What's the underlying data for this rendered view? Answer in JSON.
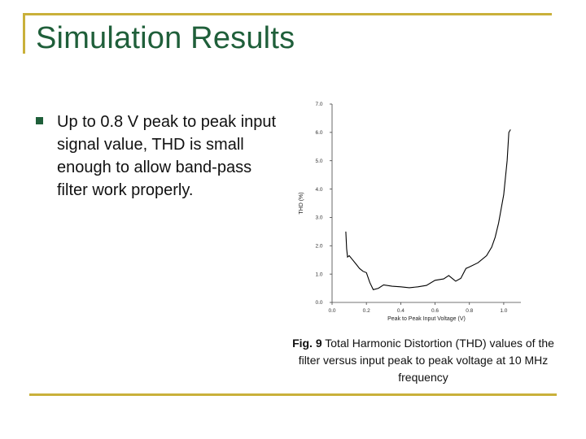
{
  "slide": {
    "title": "Simulation Results",
    "bullet": "Up to 0.8 V peak to peak input signal value, THD is small enough to allow band-pass filter work properly.",
    "caption_prefix": "Fig. 9",
    "caption_text": " Total Harmonic Distortion (THD) values of the filter versus  input peak to peak voltage at 10 MHz frequency",
    "accent_color": "#c9b03a",
    "title_color": "#1f5f3a"
  },
  "chart_data": {
    "type": "line",
    "xlabel": "Peak to Peak Input Voltage (V)",
    "ylabel": "THD (%)",
    "xlim": [
      0.0,
      1.1
    ],
    "ylim": [
      0.0,
      7.0
    ],
    "x_ticks": [
      "0.0",
      "0.2",
      "0.4",
      "0.6",
      "0.8",
      "1.0"
    ],
    "y_ticks": [
      "0.0",
      "1.0",
      "2.0",
      "3.0",
      "4.0",
      "5.0",
      "6.0",
      "7.0"
    ],
    "grid": false,
    "series": [
      {
        "color": "#000000",
        "x": [
          0.08,
          0.085,
          0.09,
          0.1,
          0.12,
          0.14,
          0.16,
          0.18,
          0.2,
          0.22,
          0.24,
          0.27,
          0.3,
          0.35,
          0.4,
          0.45,
          0.5,
          0.55,
          0.6,
          0.65,
          0.68,
          0.7,
          0.72,
          0.75,
          0.78,
          0.8,
          0.85,
          0.9,
          0.93,
          0.95,
          0.97,
          1.0,
          1.02,
          1.03,
          1.04
        ],
        "y": [
          2.5,
          1.9,
          1.6,
          1.65,
          1.5,
          1.35,
          1.2,
          1.1,
          1.05,
          0.7,
          0.45,
          0.5,
          0.62,
          0.57,
          0.55,
          0.52,
          0.55,
          0.6,
          0.78,
          0.83,
          0.95,
          0.85,
          0.75,
          0.85,
          1.2,
          1.25,
          1.4,
          1.65,
          1.95,
          2.3,
          2.8,
          3.8,
          5.0,
          6.0,
          6.1
        ]
      }
    ]
  }
}
